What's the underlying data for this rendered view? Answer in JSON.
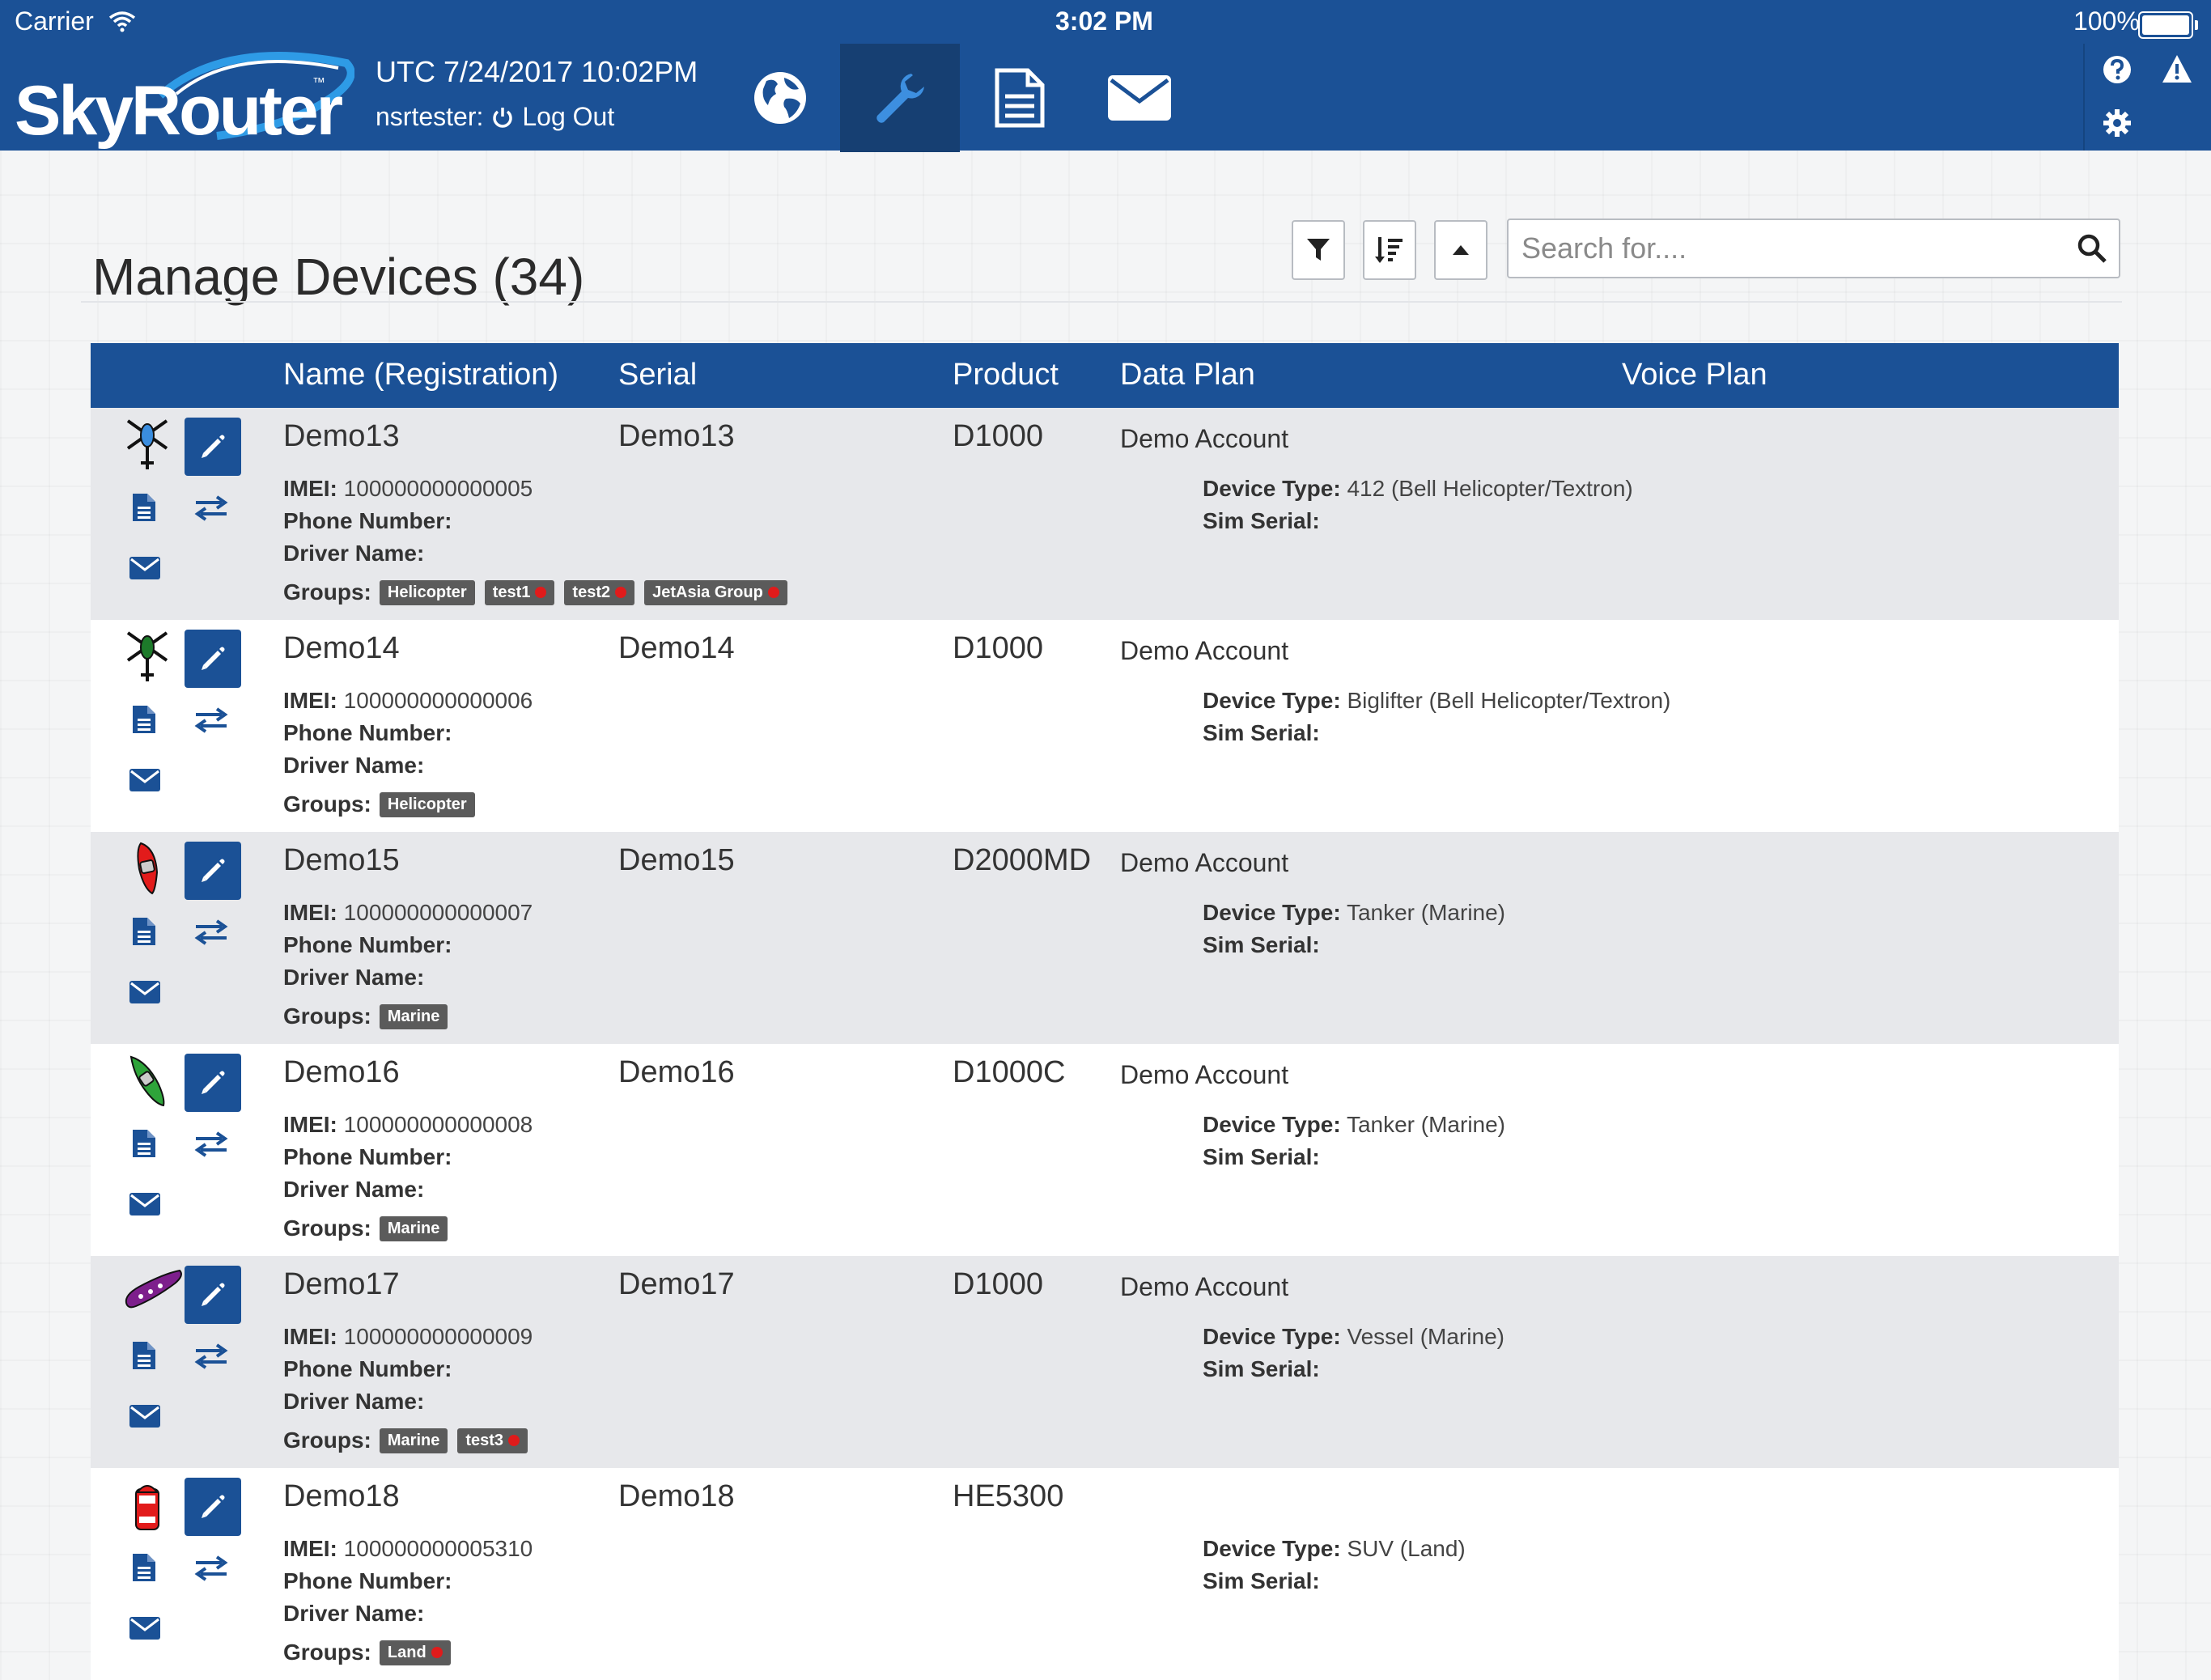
{
  "status_bar": {
    "carrier": "Carrier",
    "time": "3:02 PM",
    "battery": "100%"
  },
  "header": {
    "logo": "SkyRouter",
    "utc": "UTC 7/24/2017 10:02PM",
    "username": "nsrtester:",
    "logout": "Log Out",
    "nav": [
      "globe-icon",
      "wrench-icon",
      "document-icon",
      "envelope-icon"
    ],
    "active_nav": "wrench-icon"
  },
  "page": {
    "title": "Manage Devices (34)",
    "search_placeholder": "Search for...."
  },
  "table": {
    "headers": [
      "Name (Registration)",
      "Serial",
      "Product",
      "Data Plan",
      "Voice Plan"
    ],
    "labels": {
      "imei": "IMEI:",
      "phone": "Phone Number:",
      "driver": "Driver Name:",
      "groups": "Groups:",
      "device_type": "Device Type:",
      "sim": "Sim Serial:"
    },
    "rows": [
      {
        "name": "Demo13",
        "serial": "Demo13",
        "product": "D1000",
        "data_plan": "Demo Account",
        "imei": "100000000000005",
        "device_type": "412 (Bell Helicopter/Textron)",
        "icon": "helicopter-blue-icon",
        "groups": [
          {
            "label": "Helicopter",
            "removable": false
          },
          {
            "label": "test1",
            "removable": true
          },
          {
            "label": "test2",
            "removable": true
          },
          {
            "label": "JetAsia Group",
            "removable": true
          }
        ]
      },
      {
        "name": "Demo14",
        "serial": "Demo14",
        "product": "D1000",
        "data_plan": "Demo Account",
        "imei": "100000000000006",
        "device_type": "Biglifter (Bell Helicopter/Textron)",
        "icon": "helicopter-green-icon",
        "groups": [
          {
            "label": "Helicopter",
            "removable": false
          }
        ]
      },
      {
        "name": "Demo15",
        "serial": "Demo15",
        "product": "D2000MD",
        "data_plan": "Demo Account",
        "imei": "100000000000007",
        "device_type": "Tanker (Marine)",
        "icon": "boat-red-icon",
        "groups": [
          {
            "label": "Marine",
            "removable": false
          }
        ]
      },
      {
        "name": "Demo16",
        "serial": "Demo16",
        "product": "D1000C",
        "data_plan": "Demo Account",
        "imei": "100000000000008",
        "device_type": "Tanker (Marine)",
        "icon": "boat-green-icon",
        "groups": [
          {
            "label": "Marine",
            "removable": false
          }
        ]
      },
      {
        "name": "Demo17",
        "serial": "Demo17",
        "product": "D1000",
        "data_plan": "Demo Account",
        "imei": "100000000000009",
        "device_type": "Vessel (Marine)",
        "icon": "vessel-purple-icon",
        "groups": [
          {
            "label": "Marine",
            "removable": false
          },
          {
            "label": "test3",
            "removable": true
          }
        ]
      },
      {
        "name": "Demo18",
        "serial": "Demo18",
        "product": "HE5300",
        "data_plan": "",
        "imei": "100000000005310",
        "device_type": "SUV (Land)",
        "icon": "car-red-icon",
        "groups": [
          {
            "label": "Land",
            "removable": true
          }
        ]
      }
    ]
  },
  "colors": {
    "brand": "#1b5196",
    "brand_dark": "#163f72",
    "tag": "#5b5b5b",
    "tag_remove": "#e01b1b"
  }
}
